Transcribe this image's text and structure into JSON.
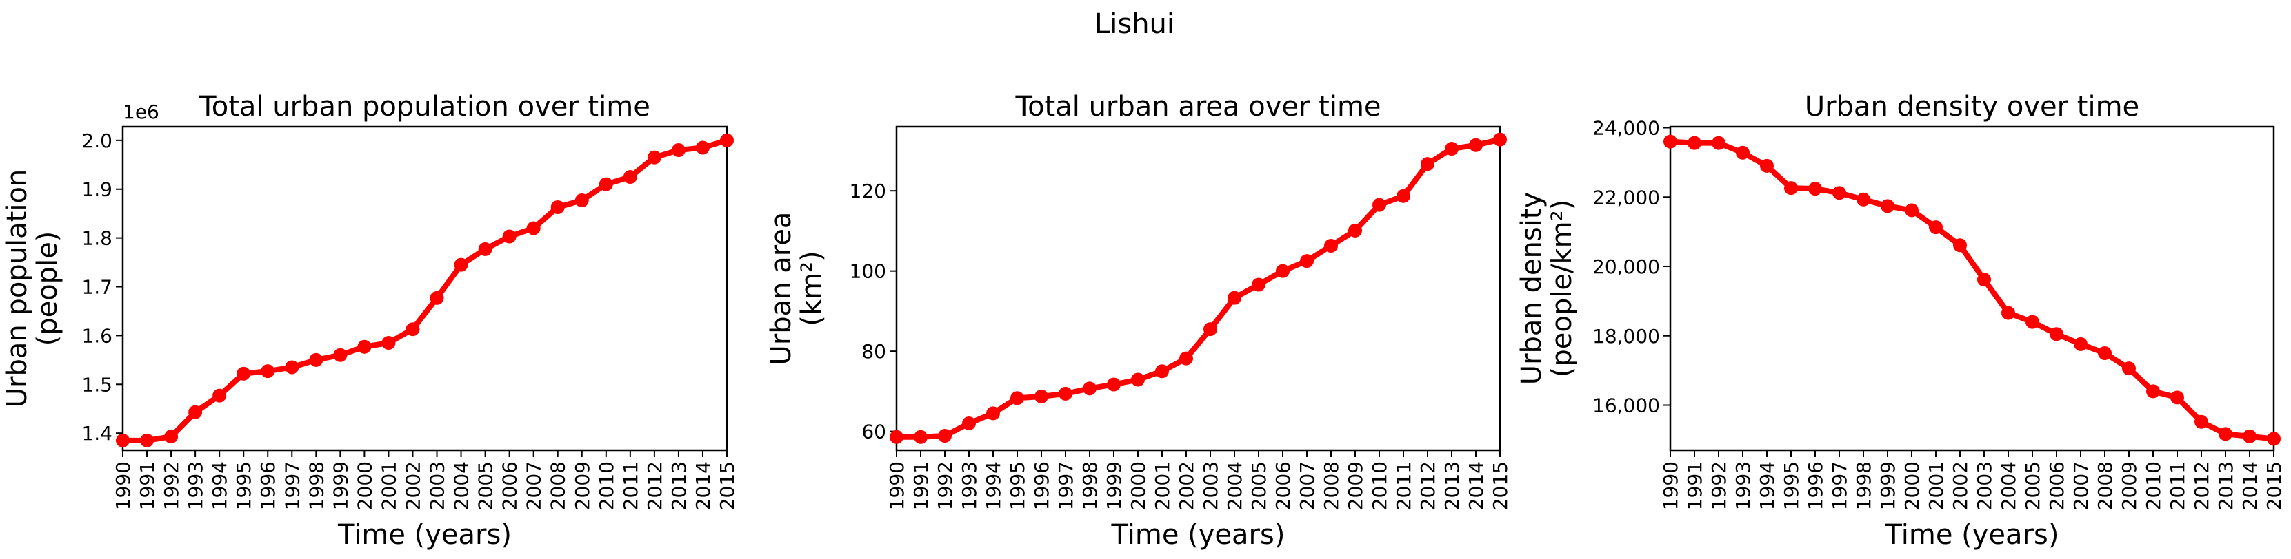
{
  "figure": {
    "title": "Lishui"
  },
  "colors": {
    "series": "#ff0000",
    "axis": "#000000",
    "background": "#ffffff"
  },
  "chart_data": [
    {
      "type": "line",
      "title": "Total urban population over time",
      "xlabel": "Time (years)",
      "ylabel": [
        "Urban population",
        "(people)"
      ],
      "offset_label": "1e6",
      "x": [
        1990,
        1991,
        1992,
        1993,
        1994,
        1995,
        1996,
        1997,
        1998,
        1999,
        2000,
        2001,
        2002,
        2003,
        2004,
        2005,
        2006,
        2007,
        2008,
        2009,
        2010,
        2011,
        2012,
        2013,
        2014,
        2015
      ],
      "values": [
        1.385,
        1.385,
        1.393,
        1.443,
        1.477,
        1.522,
        1.527,
        1.535,
        1.55,
        1.56,
        1.577,
        1.585,
        1.613,
        1.677,
        1.745,
        1.777,
        1.803,
        1.82,
        1.863,
        1.877,
        1.91,
        1.925,
        1.965,
        1.98,
        1.985,
        2.0
      ],
      "ylim": [
        1.365,
        2.028
      ],
      "yticks": [
        1.4,
        1.5,
        1.6,
        1.7,
        1.8,
        1.9,
        2.0
      ],
      "ytick_labels": [
        "1.4",
        "1.5",
        "1.6",
        "1.7",
        "1.8",
        "1.9",
        "2.0"
      ],
      "grid": false
    },
    {
      "type": "line",
      "title": "Total urban area over time",
      "xlabel": "Time (years)",
      "ylabel": [
        "Urban area",
        "(km²)"
      ],
      "x": [
        1990,
        1991,
        1992,
        1993,
        1994,
        1995,
        1996,
        1997,
        1998,
        1999,
        2000,
        2001,
        2002,
        2003,
        2004,
        2005,
        2006,
        2007,
        2008,
        2009,
        2010,
        2011,
        2012,
        2013,
        2014,
        2015
      ],
      "values": [
        58.6,
        58.6,
        58.9,
        62.0,
        64.5,
        68.3,
        68.7,
        69.4,
        70.7,
        71.7,
        72.9,
        75.0,
        78.2,
        85.5,
        93.3,
        96.6,
        100.0,
        102.5,
        106.3,
        110.1,
        116.5,
        118.7,
        126.7,
        130.5,
        131.4,
        132.8
      ],
      "ylim": [
        55.3,
        136.0
      ],
      "yticks": [
        60,
        80,
        100,
        120
      ],
      "ytick_labels": [
        "60",
        "80",
        "100",
        "120"
      ],
      "grid": false
    },
    {
      "type": "line",
      "title": "Urban density over time",
      "xlabel": "Time (years)",
      "ylabel": [
        "Urban density",
        "(people/km²)"
      ],
      "x": [
        1990,
        1991,
        1992,
        1993,
        1994,
        1995,
        1996,
        1997,
        1998,
        1999,
        2000,
        2001,
        2002,
        2003,
        2004,
        2005,
        2006,
        2007,
        2008,
        2009,
        2010,
        2011,
        2012,
        2013,
        2014,
        2015
      ],
      "values": [
        23600,
        23560,
        23560,
        23280,
        22900,
        22260,
        22240,
        22120,
        21930,
        21740,
        21620,
        21130,
        20610,
        19620,
        18660,
        18400,
        18050,
        17760,
        17500,
        17060,
        16400,
        16220,
        15520,
        15170,
        15100,
        15030
      ],
      "ylim": [
        14700,
        24030
      ],
      "yticks": [
        16000,
        18000,
        20000,
        22000,
        24000
      ],
      "ytick_labels": [
        "16,000",
        "18,000",
        "20,000",
        "22,000",
        "24,000"
      ],
      "grid": false
    }
  ]
}
